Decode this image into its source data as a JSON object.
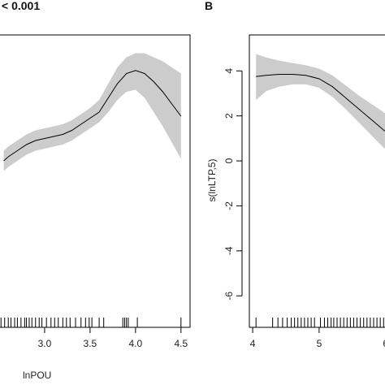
{
  "figure": {
    "left_header": "< 0.001",
    "right_panel_letter": "B"
  },
  "chart_data": [
    {
      "type": "line",
      "panel": "A",
      "xlabel": "lnPOU",
      "ylabel": "",
      "xticks": [
        3.0,
        3.5,
        4.0,
        4.5
      ],
      "xtick_labels": [
        "3.0",
        "3.5",
        "4.0",
        "4.5"
      ],
      "xlim": [
        2.5,
        4.6
      ],
      "ylim": [
        -8,
        6.4
      ],
      "series": [
        {
          "x": [
            2.55,
            2.6,
            2.7,
            2.8,
            2.9,
            3.0,
            3.1,
            3.2,
            3.3,
            3.4,
            3.5,
            3.6,
            3.7,
            3.8,
            3.9,
            4.0,
            4.1,
            4.2,
            4.3,
            4.4,
            4.5
          ],
          "y": [
            0.2,
            0.4,
            0.7,
            1.0,
            1.2,
            1.3,
            1.4,
            1.5,
            1.7,
            2.0,
            2.3,
            2.6,
            3.3,
            4.0,
            4.5,
            4.65,
            4.5,
            4.1,
            3.6,
            3.0,
            2.4
          ],
          "lower": [
            -0.3,
            -0.1,
            0.2,
            0.5,
            0.7,
            0.8,
            0.9,
            1.0,
            1.2,
            1.5,
            1.8,
            2.1,
            2.6,
            3.2,
            3.6,
            3.7,
            3.3,
            2.6,
            1.9,
            1.1,
            0.3
          ],
          "upper": [
            0.7,
            0.9,
            1.2,
            1.5,
            1.7,
            1.8,
            1.9,
            2.0,
            2.2,
            2.5,
            2.8,
            3.2,
            4.0,
            4.8,
            5.3,
            5.5,
            5.5,
            5.3,
            5.1,
            4.8,
            4.5
          ]
        }
      ],
      "rug": [
        2.52,
        2.56,
        2.6,
        2.63,
        2.67,
        2.7,
        2.74,
        2.78,
        2.8,
        2.83,
        2.86,
        2.9,
        2.94,
        2.97,
        3.02,
        3.07,
        3.11,
        3.15,
        3.2,
        3.24,
        3.28,
        3.34,
        3.4,
        3.45,
        3.49,
        3.52,
        3.6,
        3.65,
        3.86,
        3.88,
        3.9,
        3.92,
        4.02,
        4.5
      ]
    },
    {
      "type": "line",
      "panel": "B",
      "xlabel": "",
      "ylabel": "s(lnLTP,5)",
      "xticks": [
        4,
        5,
        6
      ],
      "xtick_labels": [
        "4",
        "5",
        "6"
      ],
      "yticks": [
        -6,
        -4,
        -2,
        0,
        2,
        4
      ],
      "ytick_labels": [
        "-6",
        "-4",
        "-2",
        "0",
        "2",
        "4"
      ],
      "xlim": [
        3.95,
        6.15
      ],
      "ylim": [
        -7.4,
        5.6
      ],
      "series": [
        {
          "x": [
            4.05,
            4.2,
            4.4,
            4.6,
            4.8,
            5.0,
            5.2,
            5.4,
            5.6,
            5.8,
            6.0,
            6.15
          ],
          "y": [
            3.75,
            3.8,
            3.85,
            3.85,
            3.8,
            3.65,
            3.3,
            2.8,
            2.3,
            1.8,
            1.3,
            0.9
          ],
          "lower": [
            2.7,
            3.1,
            3.3,
            3.4,
            3.4,
            3.25,
            2.85,
            2.3,
            1.7,
            1.1,
            0.5,
            0.0
          ],
          "upper": [
            4.75,
            4.6,
            4.45,
            4.35,
            4.25,
            4.1,
            3.8,
            3.35,
            2.9,
            2.5,
            2.1,
            1.8
          ]
        }
      ],
      "rug": [
        4.05,
        4.3,
        4.38,
        4.45,
        4.52,
        4.58,
        4.63,
        4.68,
        4.73,
        4.78,
        4.83,
        4.88,
        4.93,
        5.02,
        5.08,
        5.13,
        5.18,
        5.22,
        5.27,
        5.32,
        5.37,
        5.42,
        5.47,
        5.52,
        5.57,
        5.62,
        5.67,
        5.72,
        5.77,
        5.82,
        5.87,
        5.92,
        5.97,
        6.02,
        6.07
      ]
    }
  ]
}
